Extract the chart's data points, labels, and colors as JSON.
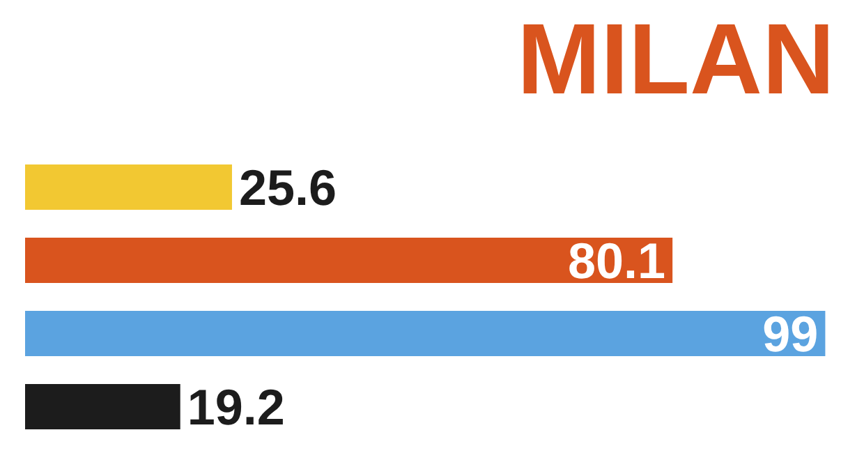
{
  "chart_data": {
    "type": "bar",
    "orientation": "horizontal",
    "title": "MILAN",
    "categories": [
      null,
      null,
      null,
      null
    ],
    "values": [
      25.6,
      80.1,
      99,
      19.2
    ],
    "colors": [
      "#f2c832",
      "#d9541e",
      "#5ba3e0",
      "#1c1c1c"
    ],
    "data_labels": true,
    "tick_labels": false
  }
}
